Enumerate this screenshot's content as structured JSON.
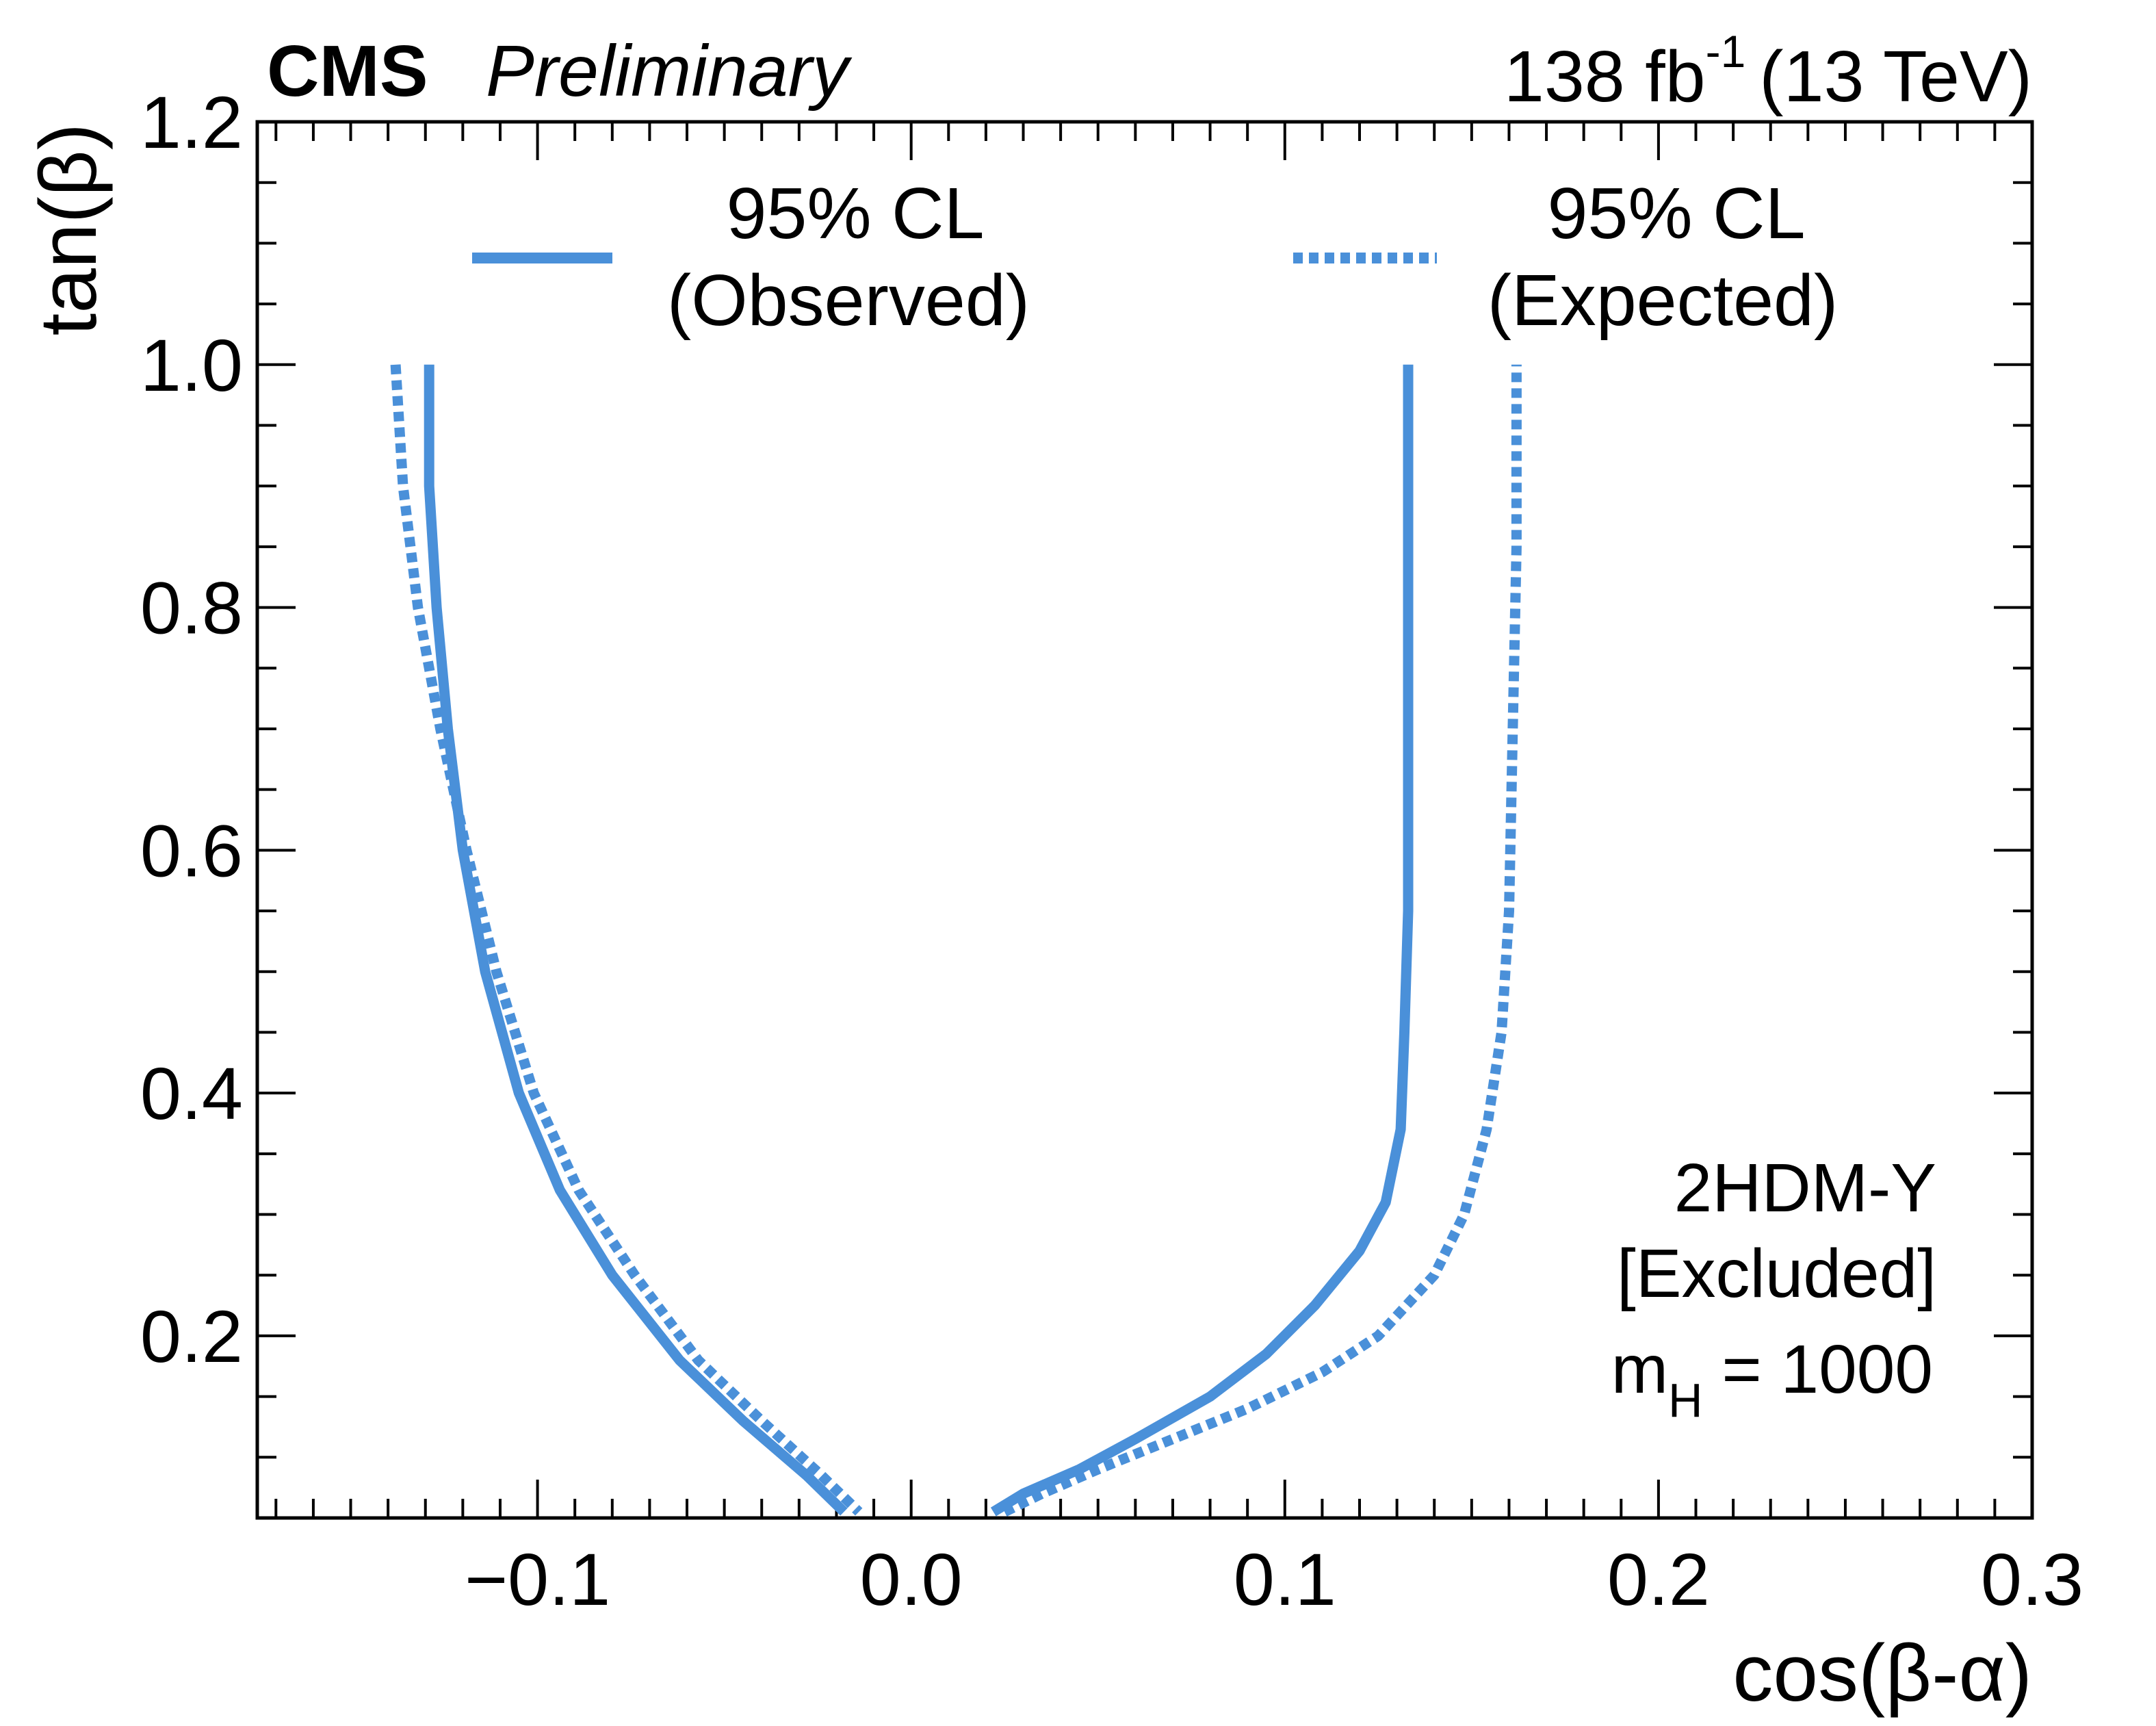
{
  "header": {
    "experiment": "CMS",
    "status": "Preliminary",
    "lumi_value": "138 fb",
    "lumi_exponent": "-1",
    "energy": "(13 TeV)"
  },
  "annotation": {
    "model": "2HDM-Y",
    "region": "[Excluded]",
    "mass_symbol": "m",
    "mass_subscript": "H",
    "mass_value": " = 1000"
  },
  "chart_data": {
    "type": "line",
    "xlabel": "cos(β-α)",
    "ylabel": "tan(β)",
    "xlim": [
      -0.175,
      0.3
    ],
    "ylim": [
      0.05,
      1.2
    ],
    "xticks": [
      {
        "value": -0.1,
        "label": "−0.1"
      },
      {
        "value": 0.0,
        "label": "0.0"
      },
      {
        "value": 0.1,
        "label": "0.1"
      },
      {
        "value": 0.2,
        "label": "0.2"
      },
      {
        "value": 0.3,
        "label": "0.3"
      }
    ],
    "yticks": [
      {
        "value": 0.2,
        "label": "0.2"
      },
      {
        "value": 0.4,
        "label": "0.4"
      },
      {
        "value": 0.6,
        "label": "0.6"
      },
      {
        "value": 0.8,
        "label": "0.8"
      },
      {
        "value": 1.0,
        "label": "1.0"
      },
      {
        "value": 1.2,
        "label": "1.2"
      }
    ],
    "grid": false,
    "legend_position": "top",
    "color": "#4a90d9",
    "series": [
      {
        "name": "95% CL",
        "name_line2": "(Observed)",
        "style": "solid",
        "branches": [
          [
            [
              -0.129,
              1.0
            ],
            [
              -0.129,
              0.9
            ],
            [
              -0.127,
              0.8
            ],
            [
              -0.124,
              0.7
            ],
            [
              -0.12,
              0.6
            ],
            [
              -0.114,
              0.5
            ],
            [
              -0.105,
              0.4
            ],
            [
              -0.094,
              0.32
            ],
            [
              -0.08,
              0.25
            ],
            [
              -0.062,
              0.18
            ],
            [
              -0.045,
              0.13
            ],
            [
              -0.028,
              0.085
            ],
            [
              -0.018,
              0.055
            ]
          ],
          [
            [
              0.022,
              0.055
            ],
            [
              0.03,
              0.07
            ],
            [
              0.045,
              0.09
            ],
            [
              0.06,
              0.115
            ],
            [
              0.08,
              0.15
            ],
            [
              0.095,
              0.185
            ],
            [
              0.108,
              0.225
            ],
            [
              0.12,
              0.27
            ],
            [
              0.127,
              0.31
            ],
            [
              0.131,
              0.37
            ],
            [
              0.132,
              0.45
            ],
            [
              0.133,
              0.55
            ],
            [
              0.133,
              0.7
            ],
            [
              0.133,
              0.85
            ],
            [
              0.133,
              1.0
            ]
          ]
        ]
      },
      {
        "name": "95% CL",
        "name_line2": "(Expected)",
        "style": "dotted",
        "branches": [
          [
            [
              -0.138,
              1.0
            ],
            [
              -0.136,
              0.9
            ],
            [
              -0.132,
              0.8
            ],
            [
              -0.126,
              0.7
            ],
            [
              -0.119,
              0.6
            ],
            [
              -0.111,
              0.5
            ],
            [
              -0.101,
              0.4
            ],
            [
              -0.089,
              0.32
            ],
            [
              -0.074,
              0.25
            ],
            [
              -0.057,
              0.18
            ],
            [
              -0.04,
              0.13
            ],
            [
              -0.024,
              0.085
            ],
            [
              -0.014,
              0.055
            ]
          ],
          [
            [
              0.025,
              0.055
            ],
            [
              0.035,
              0.07
            ],
            [
              0.05,
              0.09
            ],
            [
              0.07,
              0.115
            ],
            [
              0.09,
              0.14
            ],
            [
              0.11,
              0.17
            ],
            [
              0.125,
              0.2
            ],
            [
              0.14,
              0.25
            ],
            [
              0.148,
              0.3
            ],
            [
              0.154,
              0.37
            ],
            [
              0.158,
              0.45
            ],
            [
              0.16,
              0.55
            ],
            [
              0.161,
              0.7
            ],
            [
              0.162,
              0.85
            ],
            [
              0.162,
              1.0
            ]
          ]
        ]
      }
    ]
  }
}
